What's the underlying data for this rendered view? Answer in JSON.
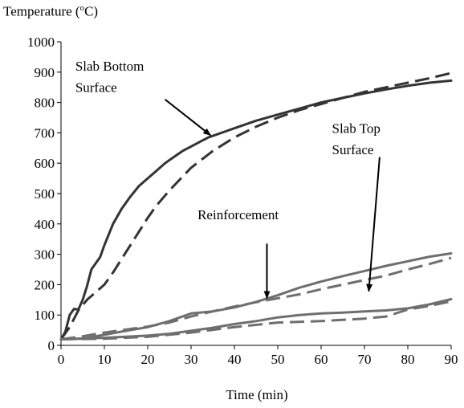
{
  "chart_data": {
    "type": "line",
    "ylabel_prefix": "Temperature (",
    "ylabel_sup": "o",
    "ylabel_suffix": "C)",
    "xlabel": "Time (min)",
    "xlim": [
      0,
      90
    ],
    "ylim": [
      0,
      1000
    ],
    "x_ticks": [
      0,
      10,
      20,
      30,
      40,
      50,
      60,
      70,
      80,
      90
    ],
    "y_ticks": [
      0,
      100,
      200,
      300,
      400,
      500,
      600,
      700,
      800,
      900,
      1000
    ],
    "grid": false,
    "legend": "none",
    "series": [
      {
        "group": "slab-bottom",
        "style": "solid",
        "color": "#333333",
        "points": [
          [
            0,
            20
          ],
          [
            1,
            45
          ],
          [
            2,
            100
          ],
          [
            3,
            120
          ],
          [
            4,
            118
          ],
          [
            5,
            150
          ],
          [
            6,
            195
          ],
          [
            7,
            250
          ],
          [
            8,
            270
          ],
          [
            9,
            290
          ],
          [
            10,
            330
          ],
          [
            12,
            400
          ],
          [
            14,
            450
          ],
          [
            16,
            490
          ],
          [
            18,
            525
          ],
          [
            20,
            550
          ],
          [
            22,
            575
          ],
          [
            24,
            600
          ],
          [
            26,
            620
          ],
          [
            28,
            640
          ],
          [
            30,
            655
          ],
          [
            32,
            670
          ],
          [
            34,
            685
          ],
          [
            36,
            695
          ],
          [
            38,
            705
          ],
          [
            40,
            715
          ],
          [
            45,
            740
          ],
          [
            50,
            760
          ],
          [
            55,
            780
          ],
          [
            60,
            800
          ],
          [
            65,
            815
          ],
          [
            70,
            830
          ],
          [
            75,
            843
          ],
          [
            80,
            855
          ],
          [
            85,
            865
          ],
          [
            90,
            872
          ]
        ]
      },
      {
        "group": "slab-bottom",
        "style": "dashed",
        "color": "#333333",
        "points": [
          [
            0,
            20
          ],
          [
            2,
            60
          ],
          [
            4,
            115
          ],
          [
            6,
            150
          ],
          [
            8,
            175
          ],
          [
            10,
            200
          ],
          [
            12,
            240
          ],
          [
            14,
            285
          ],
          [
            16,
            330
          ],
          [
            18,
            375
          ],
          [
            20,
            420
          ],
          [
            22,
            460
          ],
          [
            25,
            510
          ],
          [
            28,
            555
          ],
          [
            30,
            585
          ],
          [
            35,
            640
          ],
          [
            40,
            685
          ],
          [
            45,
            720
          ],
          [
            50,
            750
          ],
          [
            55,
            775
          ],
          [
            60,
            795
          ],
          [
            65,
            815
          ],
          [
            70,
            835
          ],
          [
            75,
            850
          ],
          [
            80,
            865
          ],
          [
            85,
            880
          ],
          [
            90,
            897
          ]
        ]
      },
      {
        "group": "reinforcement",
        "style": "solid",
        "color": "#6e6e6e",
        "points": [
          [
            0,
            20
          ],
          [
            5,
            22
          ],
          [
            10,
            35
          ],
          [
            15,
            48
          ],
          [
            20,
            60
          ],
          [
            25,
            80
          ],
          [
            30,
            105
          ],
          [
            35,
            112
          ],
          [
            40,
            125
          ],
          [
            45,
            143
          ],
          [
            50,
            165
          ],
          [
            55,
            190
          ],
          [
            60,
            210
          ],
          [
            65,
            228
          ],
          [
            70,
            245
          ],
          [
            75,
            262
          ],
          [
            80,
            277
          ],
          [
            85,
            292
          ],
          [
            90,
            303
          ]
        ]
      },
      {
        "group": "reinforcement",
        "style": "dashed",
        "color": "#6e6e6e",
        "points": [
          [
            0,
            20
          ],
          [
            5,
            30
          ],
          [
            10,
            42
          ],
          [
            15,
            52
          ],
          [
            20,
            62
          ],
          [
            25,
            75
          ],
          [
            30,
            95
          ],
          [
            35,
            112
          ],
          [
            40,
            128
          ],
          [
            45,
            142
          ],
          [
            50,
            155
          ],
          [
            55,
            168
          ],
          [
            60,
            185
          ],
          [
            65,
            200
          ],
          [
            70,
            215
          ],
          [
            75,
            230
          ],
          [
            80,
            250
          ],
          [
            85,
            268
          ],
          [
            90,
            288
          ]
        ]
      },
      {
        "group": "slab-top",
        "style": "solid",
        "color": "#6e6e6e",
        "points": [
          [
            0,
            20
          ],
          [
            10,
            25
          ],
          [
            20,
            32
          ],
          [
            25,
            38
          ],
          [
            30,
            48
          ],
          [
            35,
            58
          ],
          [
            40,
            70
          ],
          [
            45,
            80
          ],
          [
            50,
            92
          ],
          [
            55,
            100
          ],
          [
            60,
            105
          ],
          [
            65,
            108
          ],
          [
            70,
            112
          ],
          [
            75,
            115
          ],
          [
            80,
            122
          ],
          [
            85,
            135
          ],
          [
            90,
            152
          ]
        ]
      },
      {
        "group": "slab-top",
        "style": "dashed",
        "color": "#6e6e6e",
        "points": [
          [
            0,
            20
          ],
          [
            10,
            22
          ],
          [
            20,
            28
          ],
          [
            30,
            42
          ],
          [
            40,
            60
          ],
          [
            50,
            75
          ],
          [
            60,
            80
          ],
          [
            70,
            88
          ],
          [
            75,
            95
          ],
          [
            80,
            118
          ],
          [
            85,
            130
          ],
          [
            90,
            145
          ]
        ]
      }
    ],
    "annotations": [
      {
        "lines": [
          "Slab Bottom",
          "Surface"
        ],
        "text_at": [
          3.3,
          905
        ],
        "line_gap": 70,
        "arrow_from": [
          24,
          810
        ],
        "arrow_to": [
          34.5,
          692
        ]
      },
      {
        "lines": [
          "Slab Top",
          "Surface"
        ],
        "text_at": [
          62.5,
          700
        ],
        "line_gap": 70,
        "arrow_from": [
          73.5,
          620
        ],
        "arrow_to": [
          71,
          178
        ]
      },
      {
        "lines": [
          "Reinforcement"
        ],
        "text_at": [
          31.5,
          415
        ],
        "line_gap": 70,
        "arrow_from": [
          47.5,
          335
        ],
        "arrow_to": [
          47.5,
          155
        ]
      }
    ]
  }
}
